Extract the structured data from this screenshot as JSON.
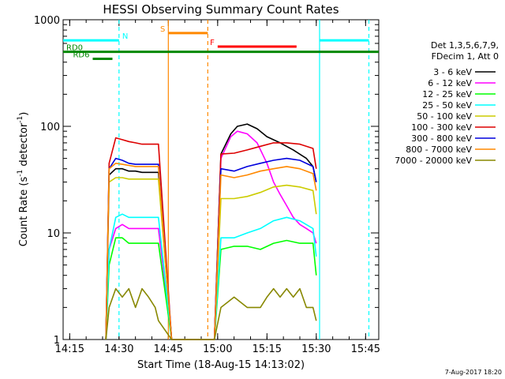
{
  "chart_data": {
    "type": "line",
    "title": "HESSI Observing Summary Count Rates",
    "xlabel": "Start Time (18-Aug-15 14:13:02)",
    "ylabel_main": "Count Rate (s",
    "ylabel_sup1": "-1",
    "ylabel_mid": " detector",
    "ylabel_sup2": "-1",
    "ylabel_end": ")",
    "yscale": "log",
    "ylim": [
      1,
      1000
    ],
    "xlim_minutes": [
      0,
      96
    ],
    "x_ticks": [
      {
        "label": "14:15",
        "value": 2
      },
      {
        "label": "14:30",
        "value": 17
      },
      {
        "label": "14:45",
        "value": 32
      },
      {
        "label": "15:00",
        "value": 47
      },
      {
        "label": "15:15",
        "value": 62
      },
      {
        "label": "15:30",
        "value": 77
      },
      {
        "label": "15:45",
        "value": 92
      }
    ],
    "y_ticks": [
      {
        "label": "1",
        "value": 1
      },
      {
        "label": "10",
        "value": 10
      },
      {
        "label": "100",
        "value": 100
      },
      {
        "label": "1000",
        "value": 1000
      }
    ],
    "legend_title_1": "Det 1,3,5,6,7,9,",
    "legend_title_2": "FDecim 1, Att 0",
    "legend_placement": "right",
    "series": [
      {
        "name": "3 - 6 keV",
        "color": "#000000",
        "x": [
          13,
          14,
          16,
          18,
          20,
          22,
          24,
          29,
          33,
          38,
          43,
          46,
          48,
          51,
          53,
          56,
          59,
          62,
          66,
          70,
          74,
          76,
          77
        ],
        "y": [
          1,
          35,
          40,
          40,
          38,
          38,
          37,
          37,
          1,
          1,
          1,
          1,
          55,
          85,
          100,
          105,
          95,
          80,
          70,
          60,
          50,
          42,
          30
        ]
      },
      {
        "name": "6 - 12 keV",
        "color": "#ff00ff",
        "x": [
          13,
          14,
          16,
          18,
          20,
          22,
          24,
          29,
          33,
          38,
          43,
          46,
          48,
          51,
          53,
          56,
          59,
          62,
          64,
          66,
          68,
          70,
          72,
          74,
          76,
          77
        ],
        "y": [
          1,
          7,
          11,
          12,
          11,
          11,
          11,
          11,
          1,
          1,
          1,
          1,
          50,
          80,
          90,
          85,
          70,
          45,
          30,
          23,
          18,
          14,
          12,
          11,
          10,
          8
        ]
      },
      {
        "name": "12 - 25 keV",
        "color": "#00ff00",
        "x": [
          13,
          14,
          16,
          18,
          20,
          22,
          24,
          29,
          33,
          38,
          43,
          46,
          48,
          52,
          56,
          60,
          64,
          68,
          72,
          76,
          77
        ],
        "y": [
          1,
          5,
          9,
          9,
          8,
          8,
          8,
          8,
          1,
          1,
          1,
          1,
          7,
          7.5,
          7.5,
          7,
          8,
          8.5,
          8,
          8,
          4
        ]
      },
      {
        "name": "25 - 50 keV",
        "color": "#00ffff",
        "x": [
          13,
          14,
          16,
          18,
          20,
          22,
          24,
          29,
          33,
          38,
          43,
          46,
          48,
          52,
          56,
          60,
          64,
          68,
          72,
          76,
          77
        ],
        "y": [
          1,
          7,
          14,
          15,
          14,
          14,
          14,
          14,
          1,
          1,
          1,
          1,
          9,
          9,
          10,
          11,
          13,
          14,
          13,
          11,
          6
        ]
      },
      {
        "name": "50 - 100 keV",
        "color": "#cccc00",
        "x": [
          13,
          14,
          16,
          18,
          20,
          22,
          24,
          29,
          33,
          38,
          43,
          46,
          48,
          52,
          56,
          60,
          64,
          68,
          72,
          76,
          77
        ],
        "y": [
          1,
          30,
          33,
          33,
          32,
          32,
          32,
          32,
          1,
          1,
          1,
          1,
          21,
          21,
          22,
          24,
          27,
          28,
          27,
          25,
          15
        ]
      },
      {
        "name": "100 - 300 keV",
        "color": "#dd0000",
        "x": [
          13,
          14,
          16,
          18,
          20,
          22,
          24,
          29,
          33,
          38,
          43,
          46,
          48,
          52,
          56,
          60,
          64,
          68,
          72,
          76,
          77
        ],
        "y": [
          1,
          45,
          78,
          75,
          72,
          70,
          68,
          68,
          1,
          1,
          1,
          1,
          55,
          56,
          60,
          65,
          70,
          70,
          68,
          62,
          40
        ]
      },
      {
        "name": "300 - 800 keV",
        "color": "#0000dd",
        "x": [
          13,
          14,
          16,
          18,
          20,
          22,
          24,
          29,
          33,
          38,
          43,
          46,
          48,
          52,
          56,
          60,
          64,
          68,
          72,
          76,
          77
        ],
        "y": [
          1,
          40,
          50,
          48,
          45,
          44,
          44,
          44,
          1,
          1,
          1,
          1,
          40,
          38,
          42,
          45,
          48,
          50,
          48,
          42,
          30
        ]
      },
      {
        "name": "800 - 7000 keV",
        "color": "#ff8800",
        "x": [
          13,
          14,
          16,
          18,
          20,
          22,
          24,
          29,
          33,
          38,
          43,
          46,
          48,
          52,
          56,
          60,
          64,
          68,
          72,
          76,
          77
        ],
        "y": [
          1,
          40,
          45,
          44,
          43,
          42,
          42,
          42,
          1,
          1,
          1,
          1,
          35,
          33,
          35,
          38,
          40,
          42,
          40,
          36,
          25
        ]
      },
      {
        "name": "7000 - 20000 keV",
        "color": "#888800",
        "x": [
          13,
          14,
          16,
          18,
          20,
          22,
          24,
          26,
          28,
          29,
          33,
          38,
          43,
          46,
          48,
          52,
          56,
          60,
          62,
          64,
          66,
          68,
          70,
          72,
          74,
          76,
          77
        ],
        "y": [
          1,
          2,
          3,
          2.5,
          3,
          2,
          3,
          2.5,
          2,
          1.5,
          1,
          1,
          1,
          1,
          2,
          2.5,
          2,
          2,
          2.5,
          3,
          2.5,
          3,
          2.5,
          3,
          2,
          2,
          1.5
        ]
      }
    ],
    "annotations": {
      "saa": {
        "label": "S",
        "x_start": 32,
        "x_end": 44,
        "y": 750,
        "color": "#ff8800"
      },
      "flare": {
        "label": "F",
        "x_start": 47,
        "x_end": 71,
        "y": 560,
        "color": "#ff0000"
      },
      "night": [
        {
          "label": "N",
          "x_start": 0,
          "x_end": 17,
          "y": 640,
          "color": "#00ffff"
        },
        {
          "label": "",
          "x_start": 78,
          "x_end": 93,
          "y": 640,
          "color": "#00ffff"
        }
      ],
      "rd0": {
        "label": "RD0",
        "x_start": 0,
        "x_end": 96,
        "y": 500,
        "color": "#008800"
      },
      "rd6": {
        "label": "RD6",
        "x_start": 9,
        "x_end": 15,
        "y": 430,
        "color": "#008800"
      },
      "vlines": [
        {
          "x": 17,
          "color": "#00ffff",
          "dashed": true
        },
        {
          "x": 32,
          "color": "#ff8800",
          "dashed": false
        },
        {
          "x": 44,
          "color": "#ff8800",
          "dashed": true
        },
        {
          "x": 78,
          "color": "#00ffff",
          "dashed": false
        },
        {
          "x": 93,
          "color": "#00ffff",
          "dashed": true
        }
      ]
    }
  },
  "footer_date": "7-Aug-2017 18:20"
}
